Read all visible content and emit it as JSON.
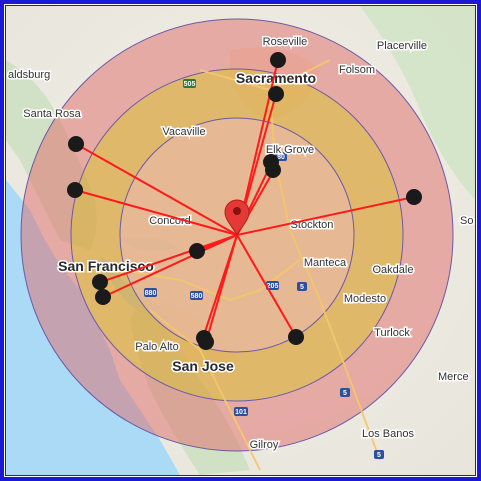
{
  "map": {
    "cities_major": [
      {
        "name": "Sacramento",
        "id": "sacramento"
      },
      {
        "name": "San Francisco",
        "id": "san-francisco"
      },
      {
        "name": "San Jose",
        "id": "san-jose"
      }
    ],
    "cities_minor": [
      {
        "name": "Roseville",
        "id": "roseville"
      },
      {
        "name": "Placerville",
        "id": "placerville"
      },
      {
        "name": "Folsom",
        "id": "folsom"
      },
      {
        "name": "aldsburg",
        "id": "healdsburg"
      },
      {
        "name": "Santa Rosa",
        "id": "santa-rosa"
      },
      {
        "name": "Vacaville",
        "id": "vacaville"
      },
      {
        "name": "Elk Grove",
        "id": "elk-grove"
      },
      {
        "name": "Concord",
        "id": "concord"
      },
      {
        "name": "Stockton",
        "id": "stockton"
      },
      {
        "name": "Manteca",
        "id": "manteca"
      },
      {
        "name": "Oakdale",
        "id": "oakdale"
      },
      {
        "name": "Modesto",
        "id": "modesto"
      },
      {
        "name": "Turlock",
        "id": "turlock"
      },
      {
        "name": "Palo Alto",
        "id": "palo-alto"
      },
      {
        "name": "Merce",
        "id": "merced"
      },
      {
        "name": "Los Banos",
        "id": "los-banos"
      },
      {
        "name": "Gilroy",
        "id": "gilroy"
      },
      {
        "name": "So",
        "id": "sonora"
      }
    ],
    "highway_shields": [
      "505",
      "80",
      "205",
      "5",
      "580",
      "880",
      "5",
      "101",
      "5"
    ],
    "rings": [
      {
        "name": "outer-ring",
        "color": "#e06a6a"
      },
      {
        "name": "middle-ring",
        "color": "#d8c23a"
      },
      {
        "name": "inner-ring",
        "color": "#e0a890"
      }
    ],
    "center_marker": {
      "color": "#e53935"
    },
    "points_count": 15,
    "line_color": "#ff1a1a",
    "frame_color": "#1a1ad6"
  }
}
